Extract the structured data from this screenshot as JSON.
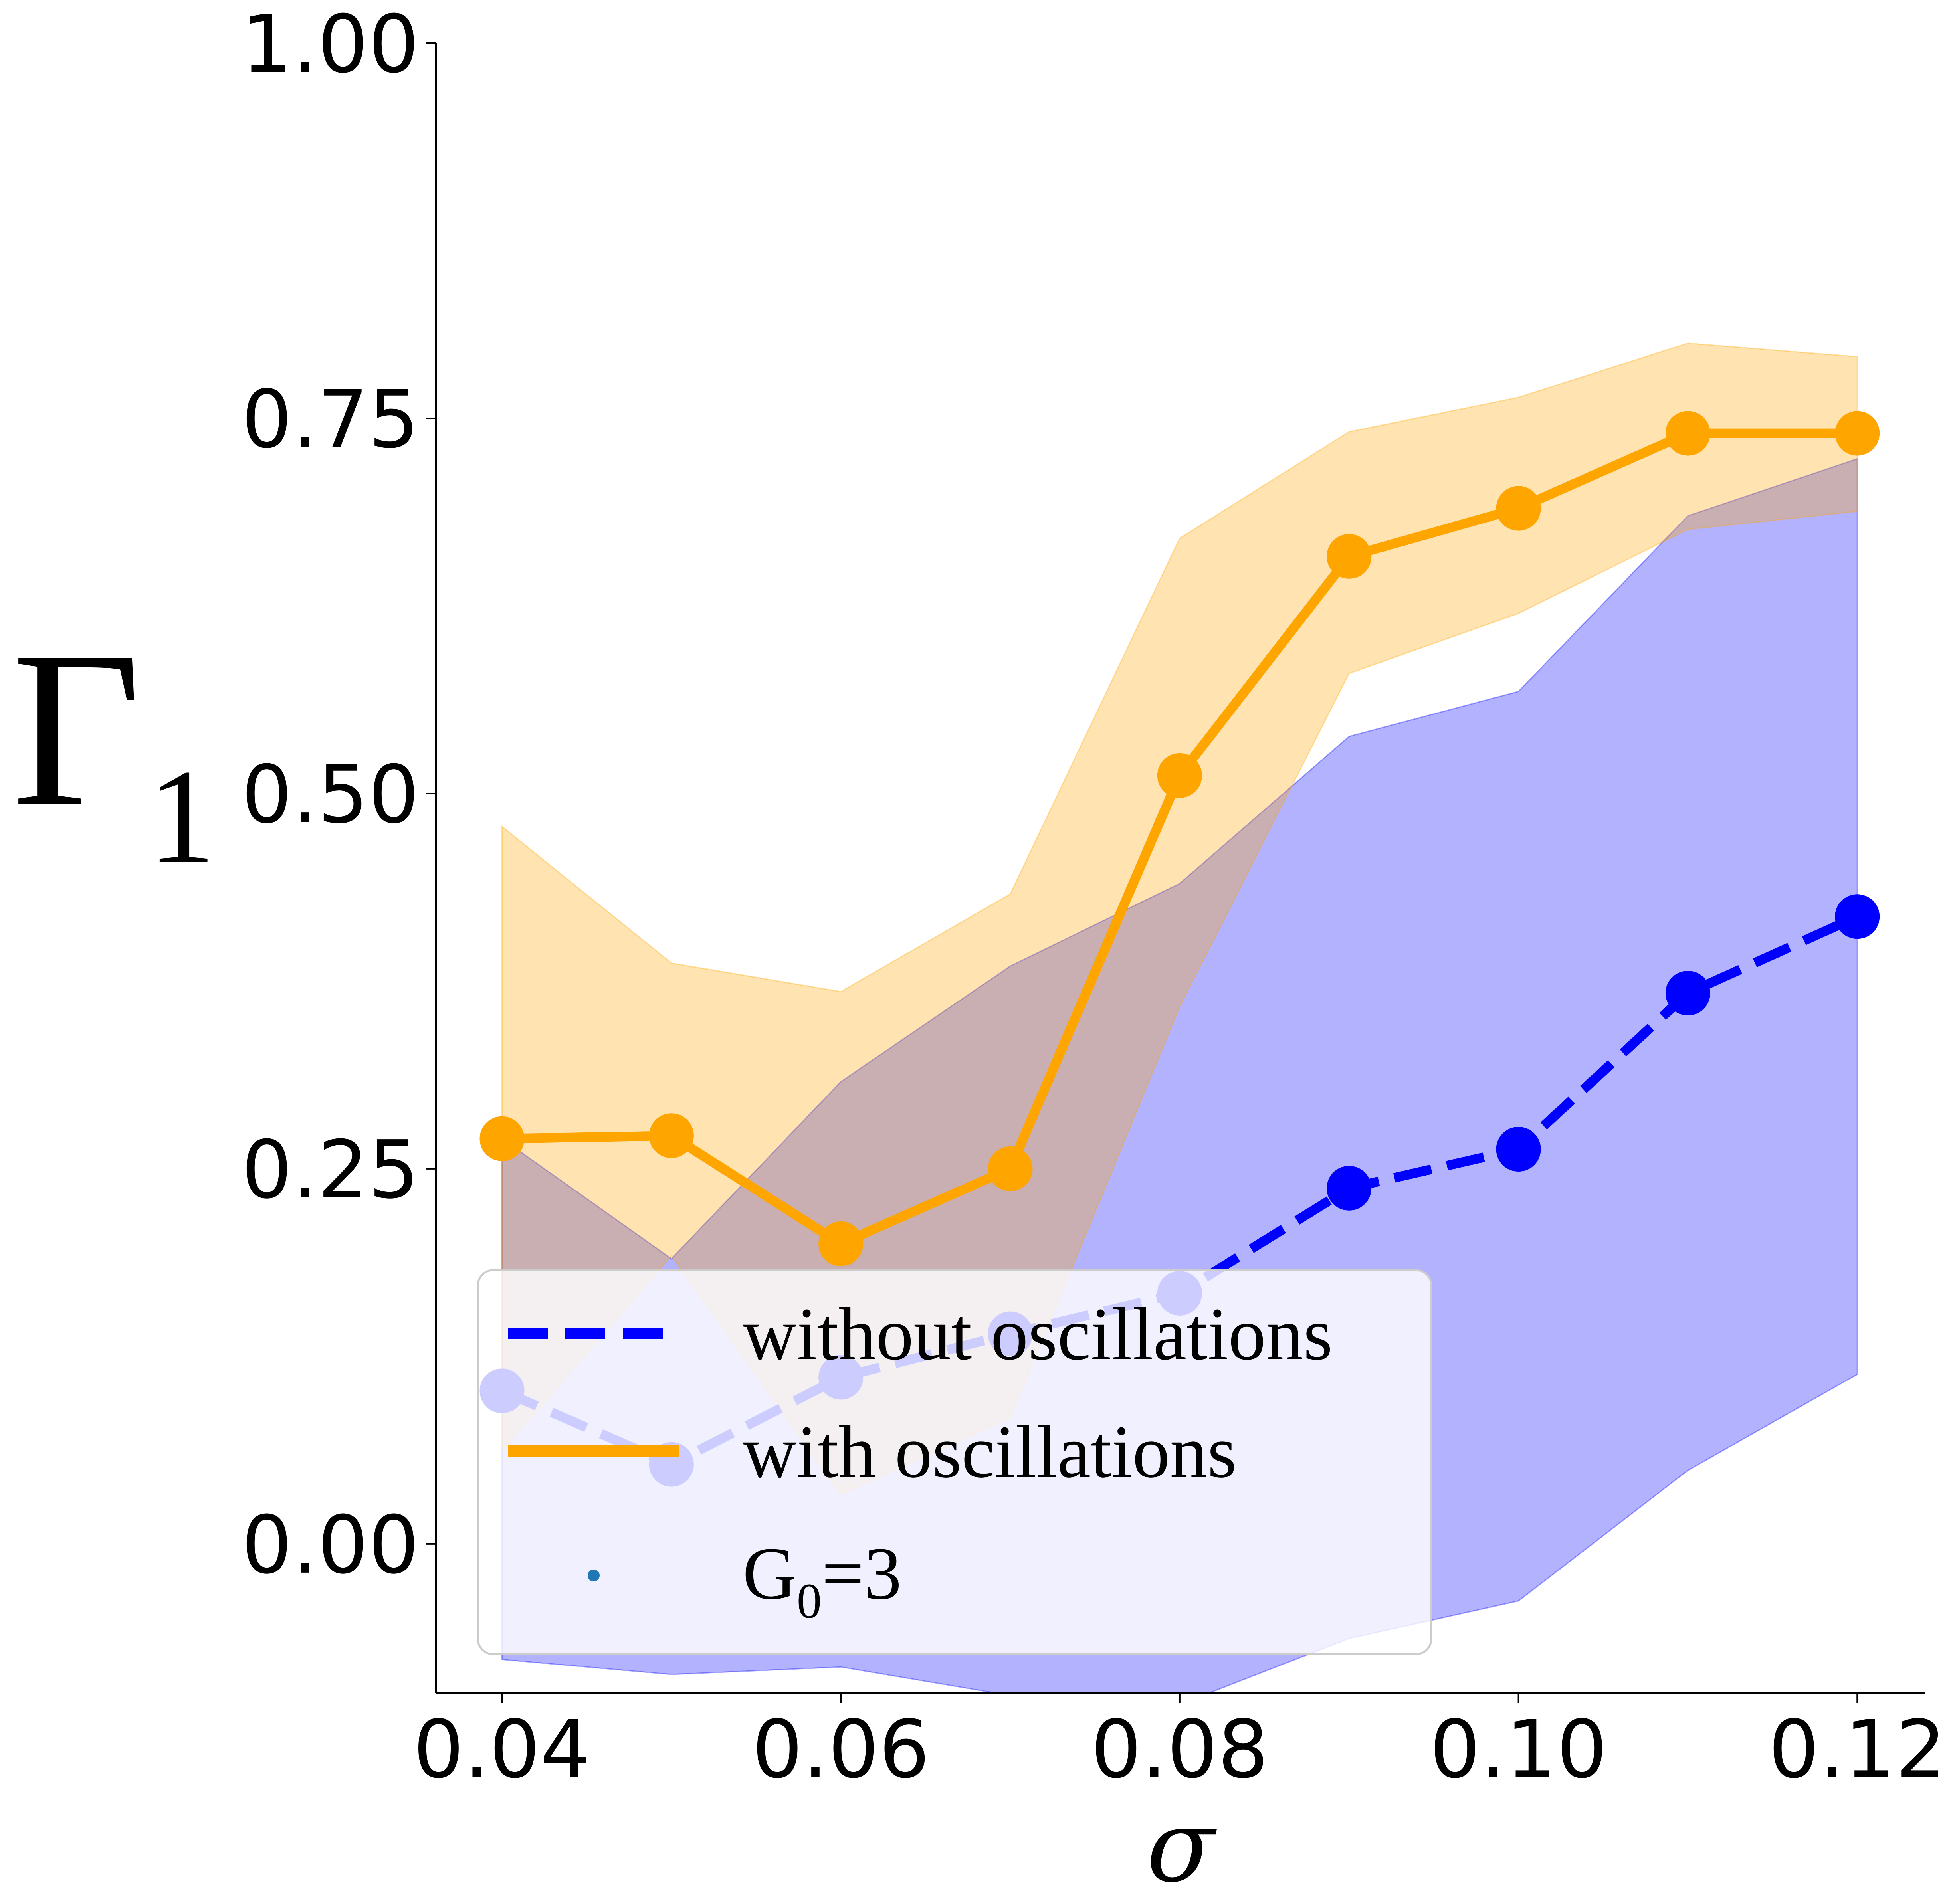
{
  "chart_data": {
    "type": "line",
    "title": "",
    "xlabel": "σ",
    "ylabel": {
      "symbol": "Γ",
      "subscript": "1"
    },
    "x": [
      0.04,
      0.05,
      0.06,
      0.07,
      0.08,
      0.09,
      0.1,
      0.11,
      0.12
    ],
    "xlim": [
      0.0361,
      0.124
    ],
    "ylim": [
      -0.0995,
      1.0
    ],
    "xticks": [
      "0.04",
      "0.06",
      "0.08",
      "0.10",
      "0.12"
    ],
    "xtick_values": [
      0.04,
      0.06,
      0.08,
      0.1,
      0.12
    ],
    "yticks": [
      "0.00",
      "0.25",
      "0.50",
      "0.75",
      "1.00"
    ],
    "ytick_values": [
      0.0,
      0.25,
      0.5,
      0.75,
      1.0
    ],
    "grid": false,
    "legend_position": "lower-left",
    "series": [
      {
        "name": "without oscillations",
        "style": "dashed",
        "color": "#0000FF",
        "values": [
          0.102,
          0.053,
          0.111,
          0.14,
          0.167,
          0.237,
          0.263,
          0.367,
          0.418
        ],
        "band_upper": [
          0.27,
          0.19,
          0.308,
          0.385,
          0.44,
          0.538,
          0.568,
          0.685,
          0.723
        ],
        "band_lower": [
          -0.077,
          -0.087,
          -0.082,
          -0.101,
          -0.107,
          -0.063,
          -0.038,
          0.049,
          0.113
        ],
        "band_color": "#0000FF"
      },
      {
        "name": "with oscillations",
        "style": "solid",
        "color": "#FFA500",
        "values": [
          0.27,
          0.272,
          0.2,
          0.25,
          0.512,
          0.658,
          0.69,
          0.74,
          0.74
        ],
        "band_upper": [
          0.478,
          0.387,
          0.368,
          0.433,
          0.67,
          0.741,
          0.764,
          0.8,
          0.791
        ],
        "band_lower": [
          0.062,
          0.192,
          0.033,
          0.084,
          0.358,
          0.58,
          0.62,
          0.676,
          0.688
        ],
        "band_color": "#FFA500"
      }
    ],
    "legend": [
      {
        "label": "without oscillations",
        "marker": "dashed-line",
        "color": "#0000FF"
      },
      {
        "label": "with oscillations",
        "marker": "solid-line",
        "color": "#FFA500"
      },
      {
        "label": "G",
        "subscript": "0",
        "suffix": "=3",
        "marker": "dot",
        "color": "#1F77B4"
      }
    ]
  }
}
